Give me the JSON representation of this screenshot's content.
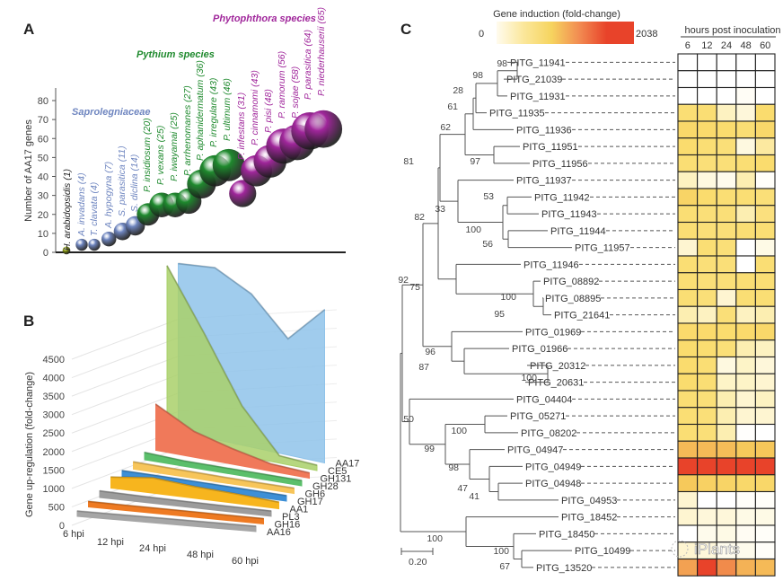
{
  "chart_data": [
    {
      "panel": "A",
      "type": "scatter",
      "subtype": "bubble",
      "ylabel": "Number of AA17 genes",
      "xlabel": "",
      "ylim": [
        0,
        85
      ],
      "yticks": [
        0,
        10,
        20,
        30,
        40,
        50,
        60,
        70,
        80
      ],
      "groups": [
        {
          "name": "",
          "color": "#8a9a10"
        },
        {
          "name": "Saprolegniaceae",
          "color": "#6f86c0"
        },
        {
          "name": "Pythium species",
          "color": "#1f8a2e"
        },
        {
          "name": "Phytophthora species",
          "color": "#a0269b"
        }
      ],
      "points": [
        {
          "label": "H. arabidopsidis (1)",
          "value": 1,
          "group": 0
        },
        {
          "label": "A. invadans (4)",
          "value": 4,
          "group": 1
        },
        {
          "label": "T. clavata (4)",
          "value": 4,
          "group": 1
        },
        {
          "label": "A. hypogyna (7)",
          "value": 7,
          "group": 1
        },
        {
          "label": "S. parasitica (11)",
          "value": 11,
          "group": 1
        },
        {
          "label": "S. diclina (14)",
          "value": 14,
          "group": 1
        },
        {
          "label": "P. insidiosum (20)",
          "value": 20,
          "group": 2
        },
        {
          "label": "P. vexans (25)",
          "value": 25,
          "group": 2
        },
        {
          "label": "P. iwayamai (25)",
          "value": 25,
          "group": 2
        },
        {
          "label": "P. arrhenomanes (27)",
          "value": 27,
          "group": 2
        },
        {
          "label": "P. aphanidermatum (36)",
          "value": 36,
          "group": 2
        },
        {
          "label": "P. irregulare (43)",
          "value": 43,
          "group": 2
        },
        {
          "label": "P. ultimum (46)",
          "value": 46,
          "group": 2
        },
        {
          "label": "P. infestans (31)",
          "value": 31,
          "group": 3
        },
        {
          "label": "P. cinnamomi (43)",
          "value": 43,
          "group": 3
        },
        {
          "label": "P. pisi (48)",
          "value": 48,
          "group": 3
        },
        {
          "label": "P. ramorum (56)",
          "value": 56,
          "group": 3
        },
        {
          "label": "P. sojae (58)",
          "value": 58,
          "group": 3
        },
        {
          "label": "P. parasitica (64)",
          "value": 64,
          "group": 3
        },
        {
          "label": "P. niederhauserii (65)",
          "value": 65,
          "group": 3
        }
      ]
    },
    {
      "panel": "B",
      "type": "area",
      "subtype": "3d-ribbon",
      "ylabel": "Gene up-regulation (fold-change)",
      "ylim": [
        0,
        4500
      ],
      "yticks": [
        0,
        500,
        1000,
        1500,
        2000,
        2500,
        3000,
        3500,
        4000,
        4500
      ],
      "categories": [
        "6 hpi",
        "12 hpi",
        "24 hpi",
        "48 hpi",
        "60 hpi"
      ],
      "series": [
        {
          "name": "AA17",
          "color": "#8fc3ea",
          "values": [
            4550,
            4650,
            4150,
            3150,
            4150
          ]
        },
        {
          "name": "CE5",
          "color": "#a9d06a",
          "values": [
            4750,
            3100,
            1350,
            200,
            20
          ]
        },
        {
          "name": "GH131",
          "color": "#f0795a",
          "values": [
            1250,
            700,
            420,
            200,
            120
          ]
        },
        {
          "name": "GH28",
          "color": "#5bbf6b",
          "values": [
            200,
            150,
            120,
            100,
            100
          ]
        },
        {
          "name": "GH6",
          "color": "#f7c55a",
          "values": [
            200,
            180,
            160,
            140,
            120
          ]
        },
        {
          "name": "GH17",
          "color": "#3d8fd6",
          "values": [
            220,
            210,
            190,
            170,
            150
          ]
        },
        {
          "name": "AA1",
          "color": "#f7b51e",
          "values": [
            300,
            420,
            320,
            260,
            180
          ]
        },
        {
          "name": "PL3",
          "color": "#9c9c9c",
          "values": [
            180,
            160,
            150,
            130,
            110
          ]
        },
        {
          "name": "GH16",
          "color": "#ee7a22",
          "values": [
            150,
            140,
            120,
            110,
            90
          ]
        },
        {
          "name": "AA16",
          "color": "#a6a6a6",
          "values": [
            90,
            80,
            70,
            60,
            50
          ]
        }
      ]
    },
    {
      "panel": "C",
      "type": "heatmap",
      "title": "Gene induction (fold-change)",
      "colorbar": {
        "min": 0,
        "max": 2038,
        "min_label": "0",
        "max_label": "2038",
        "stops": [
          "#fffbee",
          "#fbe79a",
          "#f6d45f",
          "#f28c52",
          "#e8432a",
          "#e8432a"
        ]
      },
      "column_header": "hours post inoculation",
      "columns": [
        "6",
        "12",
        "24",
        "48",
        "60"
      ],
      "scale_bar_label": "0.20",
      "rows": [
        {
          "gene": "PITG_11941",
          "values": [
            0,
            0,
            0,
            0,
            0
          ]
        },
        {
          "gene": "PITG_21039",
          "values": [
            0,
            0,
            0,
            0,
            0
          ]
        },
        {
          "gene": "PITG_11931",
          "values": [
            0,
            0,
            0,
            30,
            0
          ]
        },
        {
          "gene": "PITG_11935",
          "values": [
            430,
            430,
            200,
            120,
            450
          ]
        },
        {
          "gene": "PITG_11936",
          "values": [
            500,
            480,
            450,
            430,
            500
          ]
        },
        {
          "gene": "PITG_11951",
          "values": [
            450,
            430,
            420,
            100,
            300
          ]
        },
        {
          "gene": "PITG_11956",
          "values": [
            430,
            420,
            420,
            430,
            450
          ]
        },
        {
          "gene": "PITG_11937",
          "values": [
            200,
            100,
            60,
            250,
            20
          ]
        },
        {
          "gene": "PITG_11942",
          "values": [
            560,
            450,
            430,
            430,
            420
          ]
        },
        {
          "gene": "PITG_11943",
          "values": [
            430,
            420,
            420,
            250,
            400
          ]
        },
        {
          "gene": "PITG_11944",
          "values": [
            430,
            420,
            420,
            430,
            430
          ]
        },
        {
          "gene": "PITG_11957",
          "values": [
            150,
            430,
            420,
            0,
            80
          ]
        },
        {
          "gene": "PITG_11946",
          "values": [
            430,
            420,
            420,
            0,
            430
          ]
        },
        {
          "gene": "PITG_08892",
          "values": [
            430,
            420,
            420,
            430,
            430
          ]
        },
        {
          "gene": "PITG_08895",
          "values": [
            430,
            420,
            150,
            430,
            430
          ]
        },
        {
          "gene": "PITG_21641",
          "values": [
            250,
            200,
            420,
            200,
            250
          ]
        },
        {
          "gene": "PITG_01969",
          "values": [
            480,
            470,
            450,
            470,
            500
          ]
        },
        {
          "gene": "PITG_01966",
          "values": [
            450,
            440,
            420,
            250,
            200
          ]
        },
        {
          "gene": "PITG_20312",
          "values": [
            450,
            430,
            100,
            180,
            120
          ]
        },
        {
          "gene": "PITG_20631",
          "values": [
            450,
            430,
            180,
            180,
            150
          ]
        },
        {
          "gene": "PITG_04404",
          "values": [
            430,
            420,
            250,
            150,
            200
          ]
        },
        {
          "gene": "PITG_05271",
          "values": [
            430,
            420,
            250,
            150,
            150
          ]
        },
        {
          "gene": "PITG_08202",
          "values": [
            430,
            420,
            250,
            10,
            0
          ]
        },
        {
          "gene": "PITG_04947",
          "values": [
            800,
            800,
            780,
            700,
            720
          ]
        },
        {
          "gene": "PITG_04949",
          "values": [
            2038,
            2000,
            2000,
            1950,
            2000
          ]
        },
        {
          "gene": "PITG_04948",
          "values": [
            700,
            600,
            560,
            500,
            520
          ]
        },
        {
          "gene": "PITG_04953",
          "values": [
            150,
            0,
            0,
            20,
            20
          ]
        },
        {
          "gene": "PITG_18452",
          "values": [
            150,
            120,
            120,
            80,
            80
          ]
        },
        {
          "gene": "PITG_18450",
          "values": [
            0,
            60,
            80,
            40,
            20
          ]
        },
        {
          "gene": "PITG_10499",
          "values": [
            150,
            120,
            60,
            60,
            20
          ]
        },
        {
          "gene": "PITG_13520",
          "values": [
            950,
            1900,
            1100,
            850,
            800
          ]
        }
      ],
      "bootstrap_values": [
        "98",
        "98",
        "28",
        "61",
        "62",
        "97",
        "81",
        "33",
        "53",
        "100",
        "56",
        "82",
        "92",
        "75",
        "100",
        "95",
        "96",
        "87",
        "100",
        "50",
        "100",
        "99",
        "98",
        "47",
        "41",
        "100",
        "100",
        "67"
      ]
    }
  ],
  "panels": {
    "a": "A",
    "b": "B",
    "c": "C"
  },
  "watermark": "iPlants"
}
